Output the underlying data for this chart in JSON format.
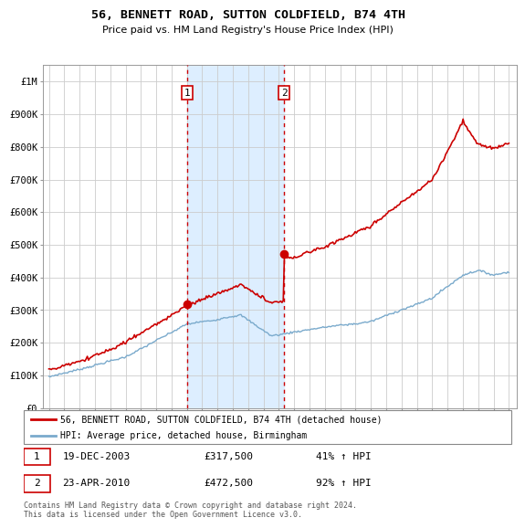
{
  "title": "56, BENNETT ROAD, SUTTON COLDFIELD, B74 4TH",
  "subtitle": "Price paid vs. HM Land Registry's House Price Index (HPI)",
  "ylim": [
    0,
    1050000
  ],
  "yticks": [
    0,
    100000,
    200000,
    300000,
    400000,
    500000,
    600000,
    700000,
    800000,
    900000,
    1000000
  ],
  "ytick_labels": [
    "£0",
    "£100K",
    "£200K",
    "£300K",
    "£400K",
    "£500K",
    "£600K",
    "£700K",
    "£800K",
    "£900K",
    "£1M"
  ],
  "x_start_year": 1995,
  "x_end_year": 2025,
  "sale1_date": 2004.0,
  "sale1_price": 317500,
  "sale2_date": 2010.33,
  "sale2_price": 472500,
  "red_line_color": "#cc0000",
  "blue_line_color": "#7aaacc",
  "shaded_region_color": "#ddeeff",
  "vline_color": "#cc0000",
  "legend_label_red": "56, BENNETT ROAD, SUTTON COLDFIELD, B74 4TH (detached house)",
  "legend_label_blue": "HPI: Average price, detached house, Birmingham",
  "footer_text": "Contains HM Land Registry data © Crown copyright and database right 2024.\nThis data is licensed under the Open Government Licence v3.0.",
  "box1_date": "19-DEC-2003",
  "box1_price": "£317,500",
  "box1_hpi": "41% ↑ HPI",
  "box2_date": "23-APR-2010",
  "box2_price": "£472,500",
  "box2_hpi": "92% ↑ HPI",
  "background_color": "#ffffff",
  "grid_color": "#cccccc"
}
